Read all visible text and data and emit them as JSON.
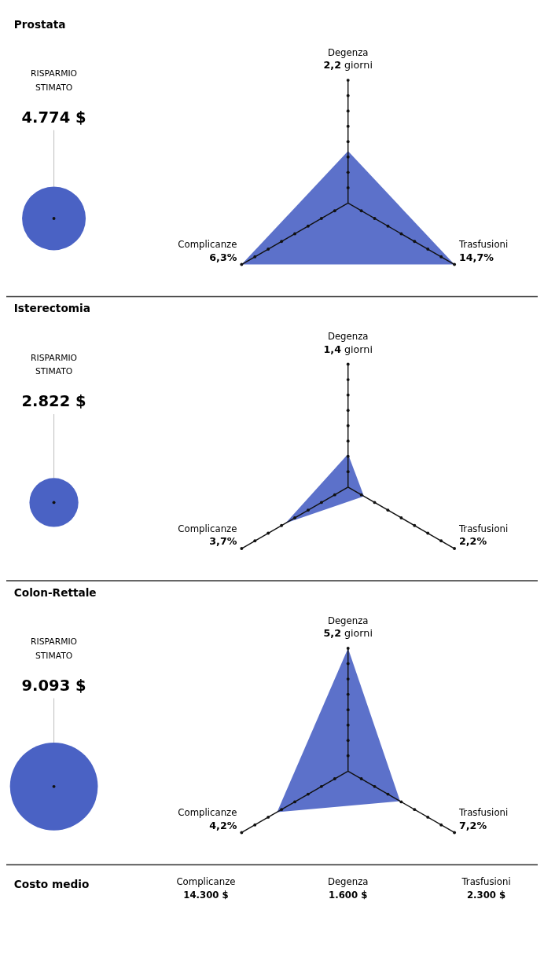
{
  "chart_data": [
    {
      "type": "other",
      "title": "Prostata",
      "categories": [
        "Degenza",
        "Trasfusioni",
        "Complicanze"
      ],
      "values": [
        2.2,
        14.7,
        6.3
      ],
      "value_labels": [
        "2,2 giorni",
        "14,7%",
        "6,3%"
      ],
      "color": "#4a62c4"
    },
    {
      "type": "other",
      "title": "RISPARMIO STIMATO",
      "values": [
        4774
      ],
      "value_labels": [
        "4.774 $"
      ],
      "color": "#4a62c4"
    },
    {
      "type": "other",
      "title": "Isterectomia",
      "categories": [
        "Degenza",
        "Trasfusioni",
        "Complicanze"
      ],
      "values": [
        1.4,
        2.2,
        3.7
      ],
      "value_labels": [
        "1,4 giorni",
        "2,2%",
        "3,7%"
      ],
      "color": "#4a62c4"
    },
    {
      "type": "other",
      "title": "RISPARMIO STIMATO",
      "values": [
        2822
      ],
      "value_labels": [
        "2.822 $"
      ],
      "color": "#4a62c4"
    },
    {
      "type": "other",
      "title": "Colon-Rettale",
      "categories": [
        "Degenza",
        "Trasfusioni",
        "Complicanze"
      ],
      "values": [
        5.2,
        7.2,
        4.2
      ],
      "value_labels": [
        "5,2 giorni",
        "7,2%",
        "4,2%"
      ],
      "color": "#4a62c4"
    },
    {
      "type": "other",
      "title": "RISPARMIO STIMATO",
      "values": [
        9093
      ],
      "value_labels": [
        "9.093 $"
      ],
      "color": "#4a62c4"
    },
    {
      "type": "other",
      "title": "Costo medio",
      "categories": [
        "Complicanze",
        "Degenza",
        "Trasfusioni"
      ],
      "value_labels": [
        "14.300 $",
        "1.600 $",
        "2.300 $"
      ]
    }
  ]
}
